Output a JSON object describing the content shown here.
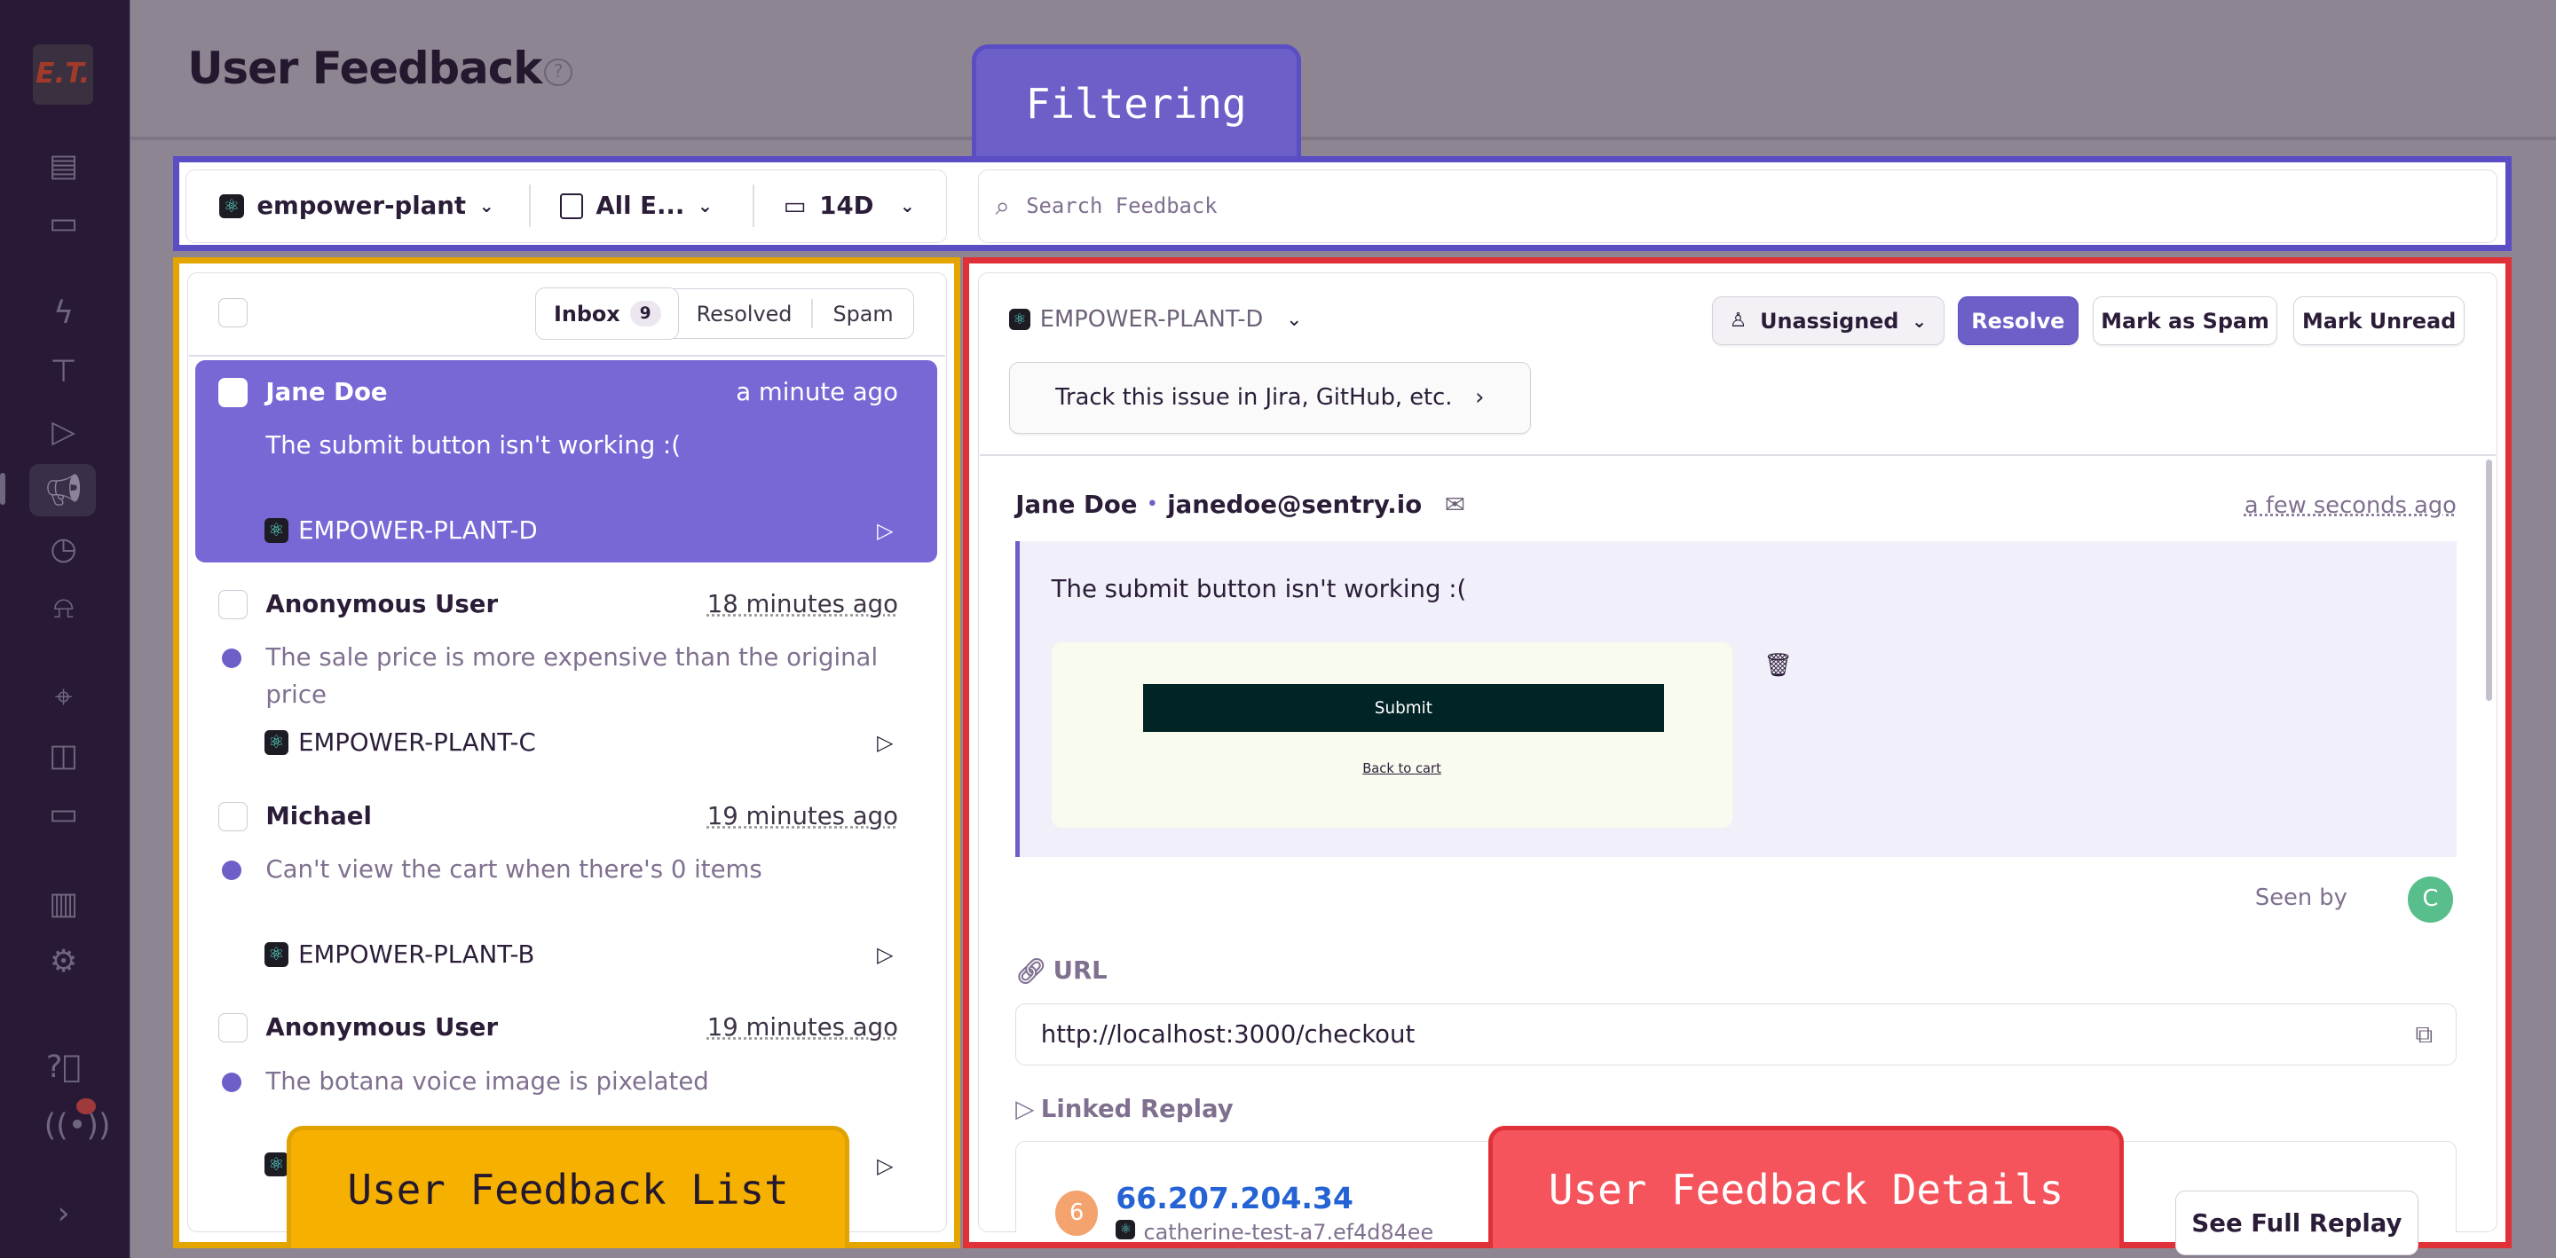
{
  "page": {
    "title": "User Feedback",
    "logo_text": "E.T."
  },
  "sidebar": {
    "icons": [
      "issues-icon",
      "projects-icon",
      "performance-icon",
      "profiling-icon",
      "replays-icon",
      "user-feedback-icon",
      "crons-icon",
      "alerts-icon",
      "discover-icon",
      "dashboards-icon",
      "releases-icon",
      "stats-icon",
      "settings-icon",
      "help-icon",
      "broadcast-icon",
      "collapse-icon"
    ]
  },
  "filters": {
    "project": "empower-plant",
    "environment": "All E...",
    "period": "14D",
    "search_placeholder": "Search Feedback"
  },
  "annotations": {
    "filtering": "Filtering",
    "list": "User Feedback List",
    "details": "User Feedback Details"
  },
  "colors": {
    "filtering": "#5b4ec4",
    "list": "#e5a500",
    "details": "#e03138",
    "accent": "#6c5fc7"
  },
  "list": {
    "tabs": [
      {
        "label": "Inbox",
        "count": "9",
        "active": true
      },
      {
        "label": "Resolved"
      },
      {
        "label": "Spam"
      }
    ],
    "items": [
      {
        "name": "Jane Doe",
        "time": "a minute ago",
        "message": "The submit button isn't working :(",
        "project": "EMPOWER-PLANT-D",
        "selected": true,
        "unread": false
      },
      {
        "name": "Anonymous User",
        "time": "18 minutes ago",
        "message": "The sale price is more expensive than the original price",
        "project": "EMPOWER-PLANT-C",
        "unread": true
      },
      {
        "name": "Michael",
        "time": "19 minutes ago",
        "message": "Can't view the cart when there's 0 items",
        "project": "EMPOWER-PLANT-B",
        "unread": true
      },
      {
        "name": "Anonymous User",
        "time": "19 minutes ago",
        "message": "The botana voice image is pixelated",
        "project": "",
        "unread": true
      }
    ]
  },
  "details": {
    "project": "EMPOWER-PLANT-D",
    "assignee": "Unassigned",
    "resolve": "Resolve",
    "mark_spam": "Mark as Spam",
    "mark_unread": "Mark Unread",
    "track": "Track this issue in Jira, GitHub, etc.",
    "name": "Jane Doe",
    "separator": "•",
    "email": "janedoe@sentry.io",
    "time": "a few seconds ago",
    "message": "The submit button isn't working :(",
    "screenshot": {
      "button": "Submit",
      "link": "Back to cart"
    },
    "seen_by": "Seen by",
    "seen_avatar": "C",
    "url_label": "URL",
    "url": "http://localhost:3000/checkout",
    "replay_label": "Linked Replay",
    "replay": {
      "avatar": "6",
      "ip": "66.207.204.34",
      "sub": "catherine-test-a7.ef4d84ee",
      "button": "See Full Replay"
    }
  }
}
